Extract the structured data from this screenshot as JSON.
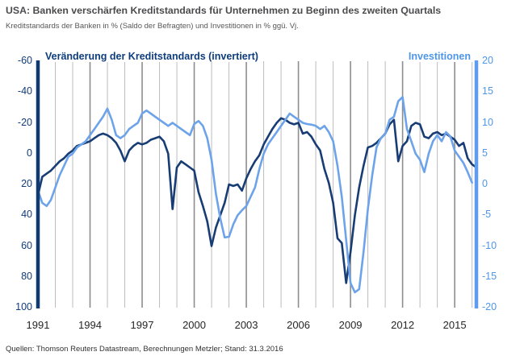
{
  "header": {
    "title": "USA: Banken verschärfen Kreditstandards für Unternehmen zu Beginn des zweiten Quartals",
    "subtitle": "Kreditstandards der Banken in % (Saldo der Befragten) und Investitionen in % ggü. Vj."
  },
  "footer": {
    "source": "Quellen: Thomson Reuters Datastream, Berechnungen Metzler; Stand: 31.3.2016"
  },
  "chart_data": {
    "type": "line",
    "x_range": [
      1991.0,
      2016.25
    ],
    "x_step_years": 0.25,
    "x_tick_labels": [
      "1991",
      "1994",
      "1997",
      "2000",
      "2003",
      "2006",
      "2009",
      "2012",
      "2015"
    ],
    "x_tick_years": [
      1991,
      1994,
      1997,
      2000,
      2003,
      2006,
      2009,
      2012,
      2015
    ],
    "grid": {
      "style": "vertical line per year, labeled years darker",
      "light_color": "#bcbcbc",
      "dark_color": "#8d8d8d"
    },
    "left_axis": {
      "label": "Veränderung der Kreditstandards (invertiert)",
      "inverted": true,
      "range": [
        -60,
        100
      ],
      "ticks": [
        -60,
        -40,
        -20,
        0,
        20,
        40,
        60,
        80,
        100
      ],
      "color": "#113a73"
    },
    "right_axis": {
      "label": "Investitionen",
      "range": [
        20,
        -20
      ],
      "ticks": [
        20,
        15,
        10,
        5,
        0,
        -5,
        -10,
        -15,
        -20
      ],
      "color": "#4f96e8"
    },
    "series": [
      {
        "name": "Veränderung der Kreditstandards (invertiert)",
        "axis": "left",
        "unit": "% (Saldo der Befragten)",
        "color": "#173d74",
        "start": 1991.0,
        "values": [
          27,
          15,
          13,
          11,
          8,
          5,
          3,
          0,
          -2,
          -5,
          -6,
          -7,
          -8,
          -10,
          -12,
          -13,
          -12,
          -10,
          -7,
          -2,
          5,
          -2,
          -5,
          -7,
          -6,
          -7,
          -9,
          -10,
          -11,
          -8,
          0,
          36,
          9,
          5,
          7,
          9,
          11,
          25,
          34,
          44,
          60,
          48,
          40,
          32,
          20,
          21,
          20,
          24,
          16,
          10,
          5,
          1,
          -6,
          -11,
          -16,
          -20,
          -23,
          -22,
          -20,
          -19,
          -20,
          -13,
          -14,
          -11,
          -6,
          -2,
          10,
          19,
          32,
          55,
          58,
          84,
          64,
          40,
          22,
          8,
          -4,
          -5,
          -7,
          -10,
          -13,
          -19,
          -22,
          5,
          -5,
          -8,
          -18,
          -20,
          -19,
          -11,
          -10,
          -13,
          -14,
          -12,
          -13,
          -11,
          -9,
          -5,
          -7,
          3,
          7,
          9
        ]
      },
      {
        "name": "Investitionen",
        "axis": "right",
        "unit": "% ggü. Vj.",
        "color": "#6da3ea",
        "start": 1991.0,
        "values": [
          -1,
          -3,
          -3.5,
          -2.5,
          -0.5,
          1.5,
          3,
          4.5,
          5,
          6,
          6.5,
          7,
          8,
          9,
          10,
          11,
          12.3,
          10.5,
          8,
          7.5,
          8,
          9,
          9.5,
          10,
          11.5,
          12,
          11.5,
          11,
          10.5,
          10,
          9.5,
          10,
          9.5,
          9,
          8.5,
          8,
          9.8,
          10.3,
          9.5,
          7.5,
          4,
          -1.5,
          -5.5,
          -8.6,
          -8.5,
          -6.5,
          -5,
          -4.2,
          -3.5,
          -2,
          -0.5,
          2.5,
          5,
          6.5,
          7.5,
          8.5,
          9.5,
          10.5,
          11.5,
          11,
          10.5,
          10,
          9.8,
          9.7,
          9.5,
          9,
          9.5,
          8.5,
          7,
          3,
          -2,
          -9,
          -16,
          -17.5,
          -17,
          -11,
          -4,
          1.5,
          6,
          7.5,
          8.2,
          10.5,
          11,
          13.5,
          14.2,
          9,
          7,
          5,
          4,
          2,
          5,
          7,
          8,
          7,
          8.5,
          7.8,
          5.5,
          4.5,
          3.5,
          2,
          0.3
        ]
      }
    ]
  }
}
